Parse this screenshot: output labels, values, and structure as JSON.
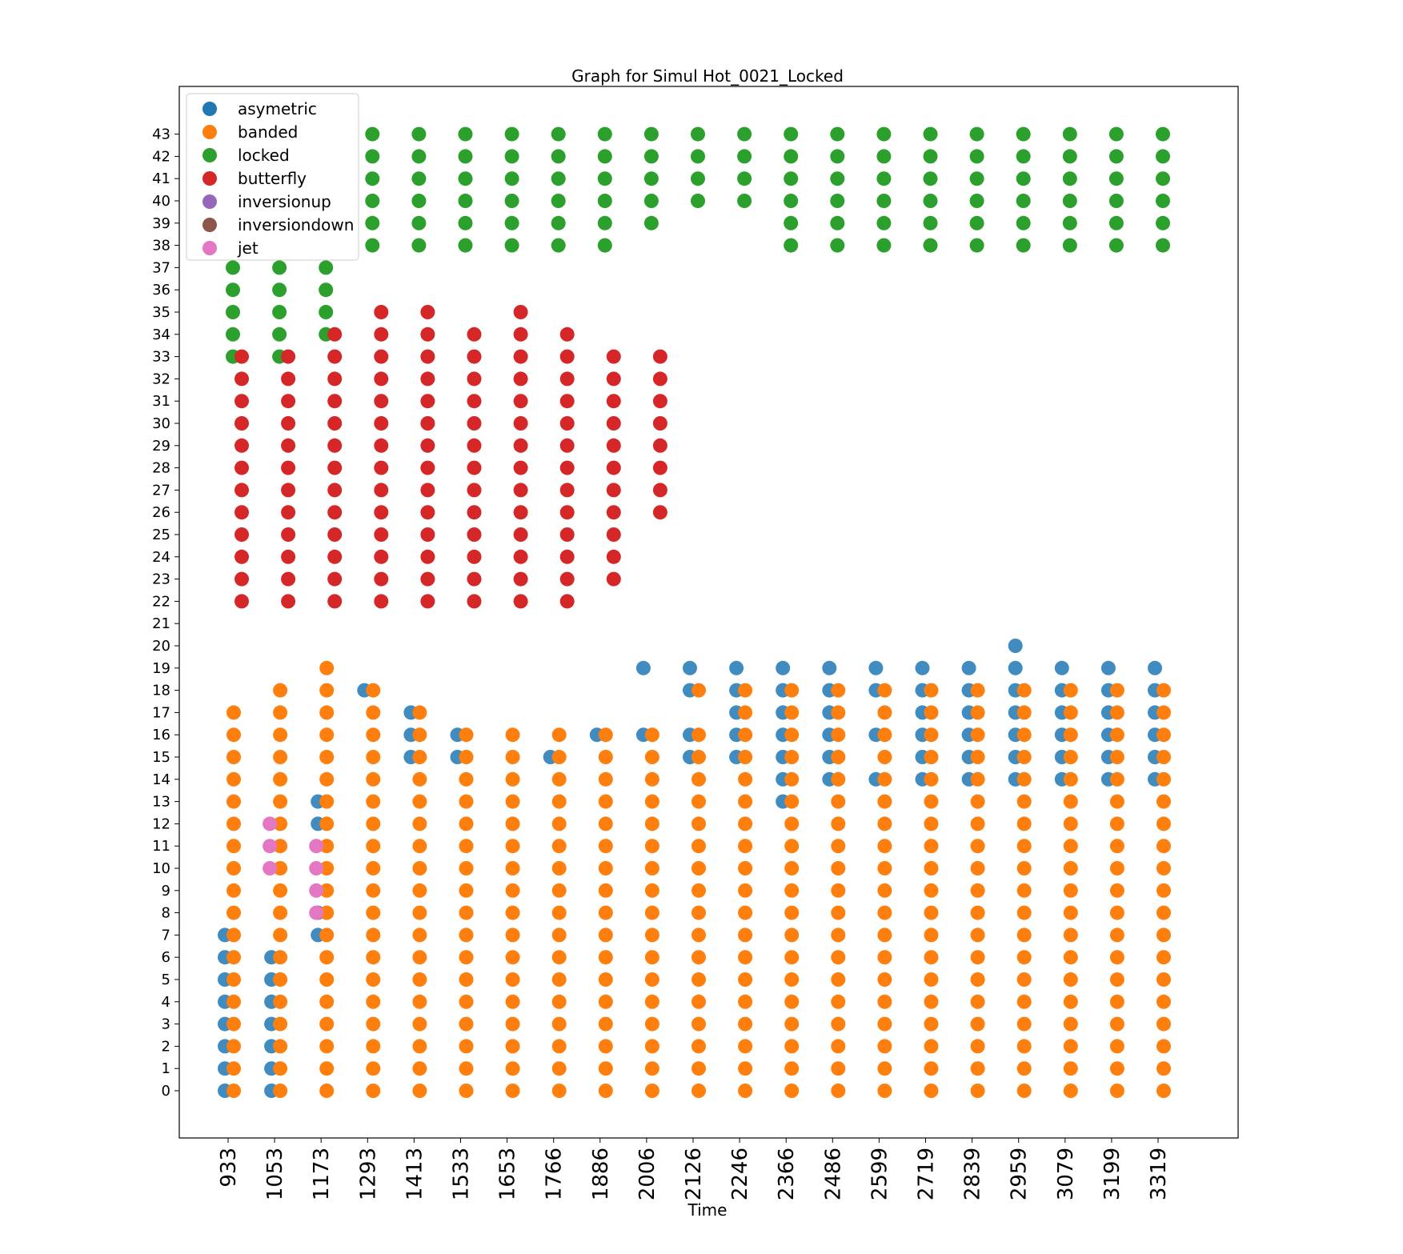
{
  "chart_data": {
    "type": "scatter",
    "title": "Graph for Simul Hot_0021_Locked",
    "xlabel": "Time",
    "ylabel": "",
    "x_ticks": [
      "933",
      "1053",
      "1173",
      "1293",
      "1413",
      "1533",
      "1653",
      "1766",
      "1886",
      "2006",
      "2126",
      "2246",
      "2366",
      "2486",
      "2599",
      "2719",
      "2839",
      "2959",
      "3079",
      "3199",
      "3319"
    ],
    "y_ticks": [
      0,
      1,
      2,
      3,
      4,
      5,
      6,
      7,
      8,
      9,
      10,
      11,
      12,
      13,
      14,
      15,
      16,
      17,
      18,
      19,
      20,
      21,
      22,
      23,
      24,
      25,
      26,
      27,
      28,
      29,
      30,
      31,
      32,
      33,
      34,
      35,
      36,
      37,
      38,
      39,
      40,
      41,
      42,
      43
    ],
    "legend_position": "top-left",
    "grid": false,
    "series": [
      {
        "name": "asymetric",
        "color": "#1f77b4"
      },
      {
        "name": "banded",
        "color": "#ff7f0e"
      },
      {
        "name": "locked",
        "color": "#2ca02c"
      },
      {
        "name": "butterfly",
        "color": "#d62728"
      },
      {
        "name": "inversionup",
        "color": "#9467bd"
      },
      {
        "name": "inversiondown",
        "color": "#8c564b"
      },
      {
        "name": "jet",
        "color": "#e377c2"
      }
    ],
    "points": {
      "banded": [
        {
          "x": "933",
          "y": [
            0,
            1,
            2,
            3,
            4,
            5,
            6,
            7,
            8,
            9,
            10,
            11,
            12,
            13,
            14,
            15,
            16,
            17
          ]
        },
        {
          "x": "1053",
          "y": [
            0,
            1,
            2,
            3,
            4,
            5,
            6,
            7,
            8,
            9,
            10,
            11,
            12,
            13,
            14,
            15,
            16,
            17,
            18
          ]
        },
        {
          "x": "1173",
          "y": [
            0,
            1,
            2,
            3,
            4,
            5,
            6,
            7,
            8,
            9,
            10,
            11,
            12,
            13,
            14,
            15,
            16,
            17,
            18,
            19
          ]
        },
        {
          "x": "1293",
          "y": [
            0,
            1,
            2,
            3,
            4,
            5,
            6,
            7,
            8,
            9,
            10,
            11,
            12,
            13,
            14,
            15,
            16,
            17,
            18
          ]
        },
        {
          "x": "1413",
          "y": [
            0,
            1,
            2,
            3,
            4,
            5,
            6,
            7,
            8,
            9,
            10,
            11,
            12,
            13,
            14,
            15,
            16,
            17
          ]
        },
        {
          "x": "1533",
          "y": [
            0,
            1,
            2,
            3,
            4,
            5,
            6,
            7,
            8,
            9,
            10,
            11,
            12,
            13,
            14,
            15,
            16
          ]
        },
        {
          "x": "1653",
          "y": [
            0,
            1,
            2,
            3,
            4,
            5,
            6,
            7,
            8,
            9,
            10,
            11,
            12,
            13,
            14,
            15,
            16
          ]
        },
        {
          "x": "1766",
          "y": [
            0,
            1,
            2,
            3,
            4,
            5,
            6,
            7,
            8,
            9,
            10,
            11,
            12,
            13,
            14,
            15,
            16
          ]
        },
        {
          "x": "1886",
          "y": [
            0,
            1,
            2,
            3,
            4,
            5,
            6,
            7,
            8,
            9,
            10,
            11,
            12,
            13,
            14,
            15,
            16
          ]
        },
        {
          "x": "2006",
          "y": [
            0,
            1,
            2,
            3,
            4,
            5,
            6,
            7,
            8,
            9,
            10,
            11,
            12,
            13,
            14,
            15,
            16
          ]
        },
        {
          "x": "2126",
          "y": [
            0,
            1,
            2,
            3,
            4,
            5,
            6,
            7,
            8,
            9,
            10,
            11,
            12,
            13,
            14,
            15,
            16,
            18
          ]
        },
        {
          "x": "2246",
          "y": [
            0,
            1,
            2,
            3,
            4,
            5,
            6,
            7,
            8,
            9,
            10,
            11,
            12,
            13,
            14,
            15,
            16,
            17,
            18
          ]
        },
        {
          "x": "2366",
          "y": [
            0,
            1,
            2,
            3,
            4,
            5,
            6,
            7,
            8,
            9,
            10,
            11,
            12,
            13,
            14,
            15,
            16,
            17,
            18
          ]
        },
        {
          "x": "2486",
          "y": [
            0,
            1,
            2,
            3,
            4,
            5,
            6,
            7,
            8,
            9,
            10,
            11,
            12,
            13,
            14,
            15,
            16,
            17,
            18
          ]
        },
        {
          "x": "2599",
          "y": [
            0,
            1,
            2,
            3,
            4,
            5,
            6,
            7,
            8,
            9,
            10,
            11,
            12,
            13,
            14,
            15,
            16,
            17,
            18
          ]
        },
        {
          "x": "2719",
          "y": [
            0,
            1,
            2,
            3,
            4,
            5,
            6,
            7,
            8,
            9,
            10,
            11,
            12,
            13,
            14,
            15,
            16,
            17,
            18
          ]
        },
        {
          "x": "2839",
          "y": [
            0,
            1,
            2,
            3,
            4,
            5,
            6,
            7,
            8,
            9,
            10,
            11,
            12,
            13,
            14,
            15,
            16,
            17,
            18
          ]
        },
        {
          "x": "2959",
          "y": [
            0,
            1,
            2,
            3,
            4,
            5,
            6,
            7,
            8,
            9,
            10,
            11,
            12,
            13,
            14,
            15,
            16,
            17,
            18
          ]
        },
        {
          "x": "3079",
          "y": [
            0,
            1,
            2,
            3,
            4,
            5,
            6,
            7,
            8,
            9,
            10,
            11,
            12,
            13,
            14,
            15,
            16,
            17,
            18
          ]
        },
        {
          "x": "3199",
          "y": [
            0,
            1,
            2,
            3,
            4,
            5,
            6,
            7,
            8,
            9,
            10,
            11,
            12,
            13,
            14,
            15,
            16,
            17,
            18
          ]
        },
        {
          "x": "3319",
          "y": [
            0,
            1,
            2,
            3,
            4,
            5,
            6,
            7,
            8,
            9,
            10,
            11,
            12,
            13,
            14,
            15,
            16,
            17,
            18
          ]
        }
      ],
      "asymetric": [
        {
          "x": "933",
          "y": [
            0,
            1,
            2,
            3,
            4,
            5,
            6,
            7
          ]
        },
        {
          "x": "1053",
          "y": [
            0,
            1,
            2,
            3,
            4,
            5,
            6
          ]
        },
        {
          "x": "1173",
          "y": [
            7,
            8,
            12,
            13
          ]
        },
        {
          "x": "1293",
          "y": [
            18
          ]
        },
        {
          "x": "1413",
          "y": [
            15,
            16,
            17
          ]
        },
        {
          "x": "1533",
          "y": [
            15,
            16
          ]
        },
        {
          "x": "1766",
          "y": [
            15
          ]
        },
        {
          "x": "1886",
          "y": [
            16
          ]
        },
        {
          "x": "2006",
          "y": [
            16,
            19
          ]
        },
        {
          "x": "2126",
          "y": [
            15,
            16,
            18,
            19
          ]
        },
        {
          "x": "2246",
          "y": [
            15,
            16,
            17,
            18,
            19
          ]
        },
        {
          "x": "2366",
          "y": [
            13,
            14,
            15,
            16,
            17,
            18,
            19
          ]
        },
        {
          "x": "2486",
          "y": [
            14,
            15,
            16,
            17,
            18,
            19
          ]
        },
        {
          "x": "2599",
          "y": [
            14,
            16,
            18,
            19
          ]
        },
        {
          "x": "2719",
          "y": [
            14,
            15,
            16,
            17,
            18,
            19
          ]
        },
        {
          "x": "2839",
          "y": [
            14,
            15,
            16,
            17,
            18,
            19
          ]
        },
        {
          "x": "2959",
          "y": [
            14,
            15,
            16,
            17,
            18,
            19,
            20
          ]
        },
        {
          "x": "3079",
          "y": [
            14,
            15,
            16,
            17,
            18,
            19
          ]
        },
        {
          "x": "3199",
          "y": [
            14,
            15,
            16,
            17,
            18,
            19
          ]
        },
        {
          "x": "3319",
          "y": [
            14,
            15,
            16,
            17,
            18,
            19
          ]
        }
      ],
      "locked": [
        {
          "x": "933",
          "y": [
            33,
            34,
            35,
            36,
            37
          ]
        },
        {
          "x": "1053",
          "y": [
            33,
            34,
            35,
            36,
            37
          ]
        },
        {
          "x": "1173",
          "y": [
            34,
            35,
            36,
            37
          ]
        },
        {
          "x": "1293",
          "y": [
            38,
            39,
            40,
            41,
            42,
            43
          ]
        },
        {
          "x": "1413",
          "y": [
            38,
            39,
            40,
            41,
            42,
            43
          ]
        },
        {
          "x": "1533",
          "y": [
            38,
            39,
            40,
            41,
            42,
            43
          ]
        },
        {
          "x": "1653",
          "y": [
            38,
            39,
            40,
            41,
            42,
            43
          ]
        },
        {
          "x": "1766",
          "y": [
            38,
            39,
            40,
            41,
            42,
            43
          ]
        },
        {
          "x": "1886",
          "y": [
            38,
            39,
            40,
            41,
            42,
            43
          ]
        },
        {
          "x": "2006",
          "y": [
            39,
            40,
            41,
            42,
            43
          ]
        },
        {
          "x": "2126",
          "y": [
            40,
            41,
            42,
            43
          ]
        },
        {
          "x": "2246",
          "y": [
            40,
            41,
            42,
            43
          ]
        },
        {
          "x": "2366",
          "y": [
            38,
            39,
            40,
            41,
            42,
            43
          ]
        },
        {
          "x": "2486",
          "y": [
            38,
            39,
            40,
            41,
            42,
            43
          ]
        },
        {
          "x": "2599",
          "y": [
            38,
            39,
            40,
            41,
            42,
            43
          ]
        },
        {
          "x": "2719",
          "y": [
            38,
            39,
            40,
            41,
            42,
            43
          ]
        },
        {
          "x": "2839",
          "y": [
            38,
            39,
            40,
            41,
            42,
            43
          ]
        },
        {
          "x": "2959",
          "y": [
            38,
            39,
            40,
            41,
            42,
            43
          ]
        },
        {
          "x": "3079",
          "y": [
            38,
            39,
            40,
            41,
            42,
            43
          ]
        },
        {
          "x": "3199",
          "y": [
            38,
            39,
            40,
            41,
            42,
            43
          ]
        },
        {
          "x": "3319",
          "y": [
            38,
            39,
            40,
            41,
            42,
            43
          ]
        }
      ],
      "butterfly": [
        {
          "x": "933",
          "y": [
            22,
            23,
            24,
            25,
            26,
            27,
            28,
            29,
            30,
            31,
            32,
            33
          ]
        },
        {
          "x": "1053",
          "y": [
            22,
            23,
            24,
            25,
            26,
            27,
            28,
            29,
            30,
            31,
            32,
            33
          ]
        },
        {
          "x": "1173",
          "y": [
            22,
            23,
            24,
            25,
            26,
            27,
            28,
            29,
            30,
            31,
            32,
            33,
            34
          ]
        },
        {
          "x": "1293",
          "y": [
            22,
            23,
            24,
            25,
            26,
            27,
            28,
            29,
            30,
            31,
            32,
            33,
            34,
            35
          ]
        },
        {
          "x": "1413",
          "y": [
            22,
            23,
            24,
            25,
            26,
            27,
            28,
            29,
            30,
            31,
            32,
            33,
            34,
            35
          ]
        },
        {
          "x": "1533",
          "y": [
            22,
            23,
            24,
            25,
            26,
            27,
            28,
            29,
            30,
            31,
            32,
            33,
            34
          ]
        },
        {
          "x": "1653",
          "y": [
            22,
            23,
            24,
            25,
            26,
            27,
            28,
            29,
            30,
            31,
            32,
            33,
            34,
            35
          ]
        },
        {
          "x": "1766",
          "y": [
            22,
            23,
            24,
            25,
            26,
            27,
            28,
            29,
            30,
            31,
            32,
            33,
            34
          ]
        },
        {
          "x": "1886",
          "y": [
            23,
            24,
            25,
            26,
            27,
            28,
            29,
            30,
            31,
            32,
            33
          ]
        },
        {
          "x": "2006",
          "y": [
            26,
            27,
            28,
            29,
            30,
            31,
            32,
            33
          ]
        }
      ],
      "jet": [
        {
          "x": "1053",
          "y": [
            10,
            11,
            12
          ]
        },
        {
          "x": "1173",
          "y": [
            8,
            9,
            10,
            11
          ]
        }
      ]
    }
  }
}
